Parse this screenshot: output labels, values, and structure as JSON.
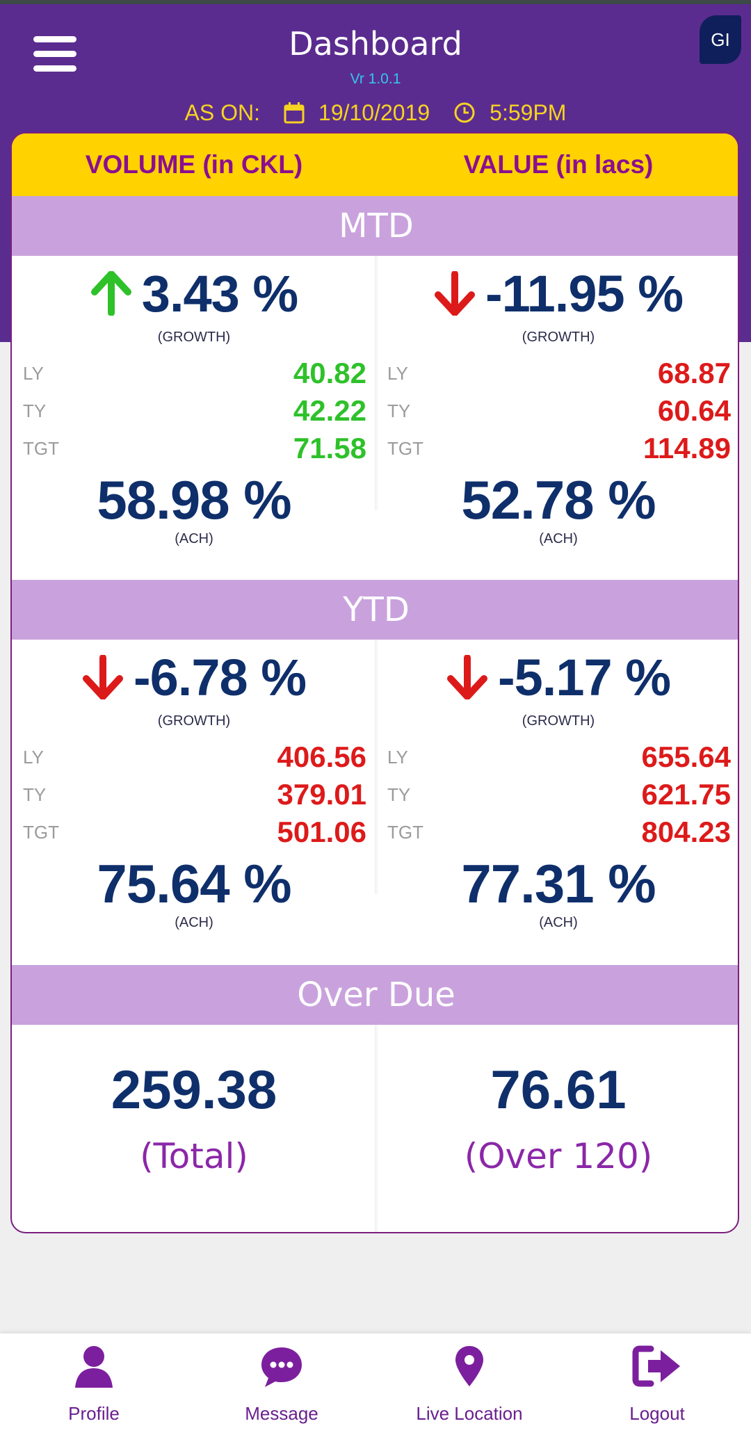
{
  "header": {
    "title": "Dashboard",
    "version": "Vr 1.0.1",
    "avatar_initials": "GI",
    "as_on_label": "AS ON:",
    "date": "19/10/2019",
    "time": "5:59PM"
  },
  "columns": {
    "left": "VOLUME (in CKL)",
    "right": "VALUE (in lacs)"
  },
  "mtd": {
    "title": "MTD",
    "volume": {
      "growth": "3.43 %",
      "growth_label": "(GROWTH)",
      "direction": "up",
      "ly_label": "LY",
      "ly": "40.82",
      "ty_label": "TY",
      "ty": "42.22",
      "tgt_label": "TGT",
      "tgt": "71.58",
      "ach": "58.98 %",
      "ach_label": "(ACH)"
    },
    "value": {
      "growth": "-11.95 %",
      "growth_label": "(GROWTH)",
      "direction": "down",
      "ly_label": "LY",
      "ly": "68.87",
      "ty_label": "TY",
      "ty": "60.64",
      "tgt_label": "TGT",
      "tgt": "114.89",
      "ach": "52.78 %",
      "ach_label": "(ACH)"
    }
  },
  "ytd": {
    "title": "YTD",
    "volume": {
      "growth": "-6.78 %",
      "growth_label": "(GROWTH)",
      "direction": "down",
      "ly_label": "LY",
      "ly": "406.56",
      "ty_label": "TY",
      "ty": "379.01",
      "tgt_label": "TGT",
      "tgt": "501.06",
      "ach": "75.64 %",
      "ach_label": "(ACH)"
    },
    "value": {
      "growth": "-5.17 %",
      "growth_label": "(GROWTH)",
      "direction": "down",
      "ly_label": "LY",
      "ly": "655.64",
      "ty_label": "TY",
      "ty": "621.75",
      "tgt_label": "TGT",
      "tgt": "804.23",
      "ach": "77.31 %",
      "ach_label": "(ACH)"
    }
  },
  "overdue": {
    "title": "Over Due",
    "total_value": "259.38",
    "total_label": "(Total)",
    "over120_value": "76.61",
    "over120_label": "(Over 120)"
  },
  "nav": {
    "profile": "Profile",
    "message": "Message",
    "location": "Live Location",
    "logout": "Logout"
  },
  "colors": {
    "header": "#5b2c8f",
    "accent_yellow": "#ffd200",
    "section_bar": "#c9a2dd",
    "positive": "#2ec12a",
    "negative": "#dd1a1a",
    "primary_number": "#0f2f6b"
  }
}
